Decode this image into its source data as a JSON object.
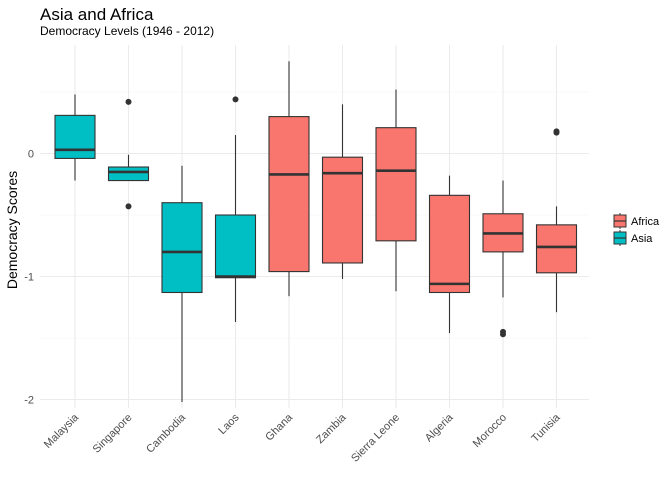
{
  "chart_data": {
    "type": "box",
    "title": "Asia and Africa",
    "subtitle": "Democracy Levels (1946 - 2012)",
    "xlabel": "",
    "ylabel": "Democracy Scores",
    "ylim": [
      -2.05,
      0.8
    ],
    "yticks": [
      0,
      -1,
      -2
    ],
    "grid": true,
    "legend_position": "right",
    "series": [
      {
        "name": "Africa",
        "color": "#F8766D"
      },
      {
        "name": "Asia",
        "color": "#00BFC4"
      }
    ],
    "categories": [
      "Malaysia",
      "Singapore",
      "Cambodia",
      "Laos",
      "Ghana",
      "Zambia",
      "Sierra Leone",
      "Algeria",
      "Morocco",
      "Tunisia"
    ],
    "boxes": [
      {
        "category": "Malaysia",
        "group": "Asia",
        "whisker_low": -0.22,
        "q1": -0.04,
        "median": 0.03,
        "q3": 0.31,
        "whisker_high": 0.48,
        "outliers": []
      },
      {
        "category": "Singapore",
        "group": "Asia",
        "whisker_low": -0.22,
        "q1": -0.22,
        "median": -0.15,
        "q3": -0.11,
        "whisker_high": -0.01,
        "outliers": [
          0.42,
          -0.43
        ]
      },
      {
        "category": "Cambodia",
        "group": "Asia",
        "whisker_low": -2.02,
        "q1": -1.13,
        "median": -0.8,
        "q3": -0.4,
        "whisker_high": -0.1,
        "outliers": []
      },
      {
        "category": "Laos",
        "group": "Asia",
        "whisker_low": -1.37,
        "q1": -1.01,
        "median": -1.0,
        "q3": -0.5,
        "whisker_high": 0.15,
        "outliers": [
          0.44
        ]
      },
      {
        "category": "Ghana",
        "group": "Africa",
        "whisker_low": -1.16,
        "q1": -0.96,
        "median": -0.17,
        "q3": 0.3,
        "whisker_high": 0.75,
        "outliers": []
      },
      {
        "category": "Zambia",
        "group": "Africa",
        "whisker_low": -1.02,
        "q1": -0.89,
        "median": -0.16,
        "q3": -0.03,
        "whisker_high": 0.4,
        "outliers": []
      },
      {
        "category": "Sierra Leone",
        "group": "Africa",
        "whisker_low": -1.12,
        "q1": -0.71,
        "median": -0.14,
        "q3": 0.21,
        "whisker_high": 0.52,
        "outliers": []
      },
      {
        "category": "Algeria",
        "group": "Africa",
        "whisker_low": -1.46,
        "q1": -1.13,
        "median": -1.06,
        "q3": -0.34,
        "whisker_high": -0.18,
        "outliers": []
      },
      {
        "category": "Morocco",
        "group": "Africa",
        "whisker_low": -1.17,
        "q1": -0.8,
        "median": -0.65,
        "q3": -0.49,
        "whisker_high": -0.22,
        "outliers": [
          -1.45,
          -1.47
        ]
      },
      {
        "category": "Tunisia",
        "group": "Africa",
        "whisker_low": -1.29,
        "q1": -0.97,
        "median": -0.76,
        "q3": -0.58,
        "whisker_high": -0.43,
        "outliers": [
          0.17,
          0.18
        ]
      }
    ]
  }
}
